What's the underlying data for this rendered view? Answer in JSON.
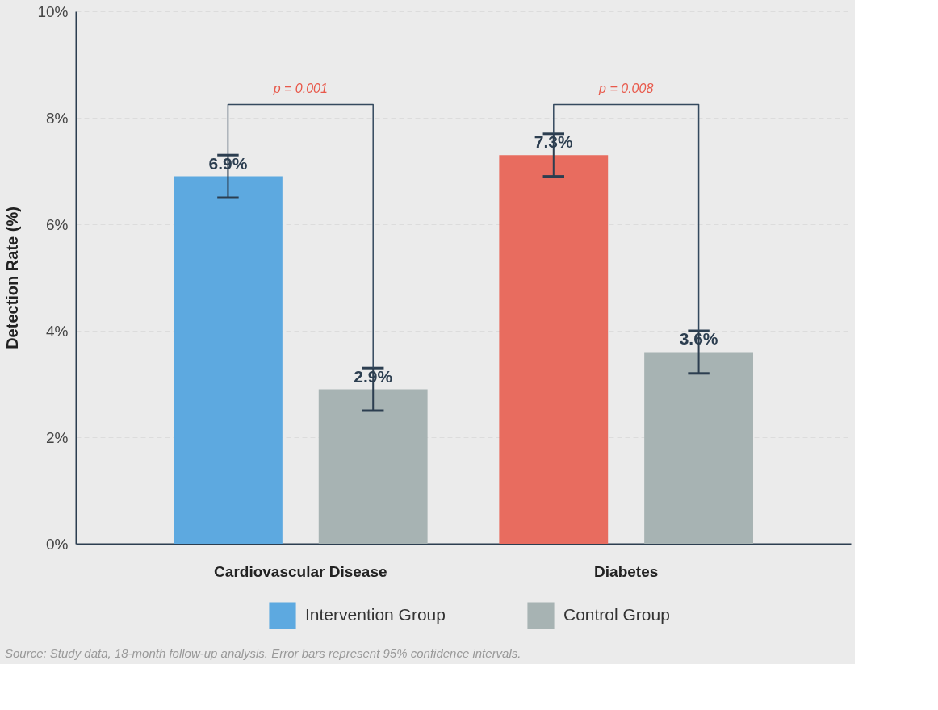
{
  "chart_data": {
    "type": "bar",
    "ylabel": "Detection Rate (%)",
    "categories": [
      "Cardiovascular Disease",
      "Diabetes"
    ],
    "series": [
      {
        "name": "Intervention Group",
        "color": "#5da9e0",
        "colors": [
          "#5da9e0",
          "#e86c5f"
        ],
        "values": [
          6.9,
          7.3
        ],
        "errors": [
          0.4,
          0.4
        ],
        "value_labels": [
          "6.9%",
          "7.3%"
        ]
      },
      {
        "name": "Control Group",
        "color": "#a7b3b3",
        "colors": [
          "#a7b3b3",
          "#a7b3b3"
        ],
        "values": [
          2.9,
          3.6
        ],
        "errors": [
          0.4,
          0.4
        ],
        "value_labels": [
          "2.9%",
          "3.6%"
        ]
      }
    ],
    "ylim": [
      0,
      10
    ],
    "yticks": [
      {
        "value": 0,
        "label": "0%"
      },
      {
        "value": 2,
        "label": "2%"
      },
      {
        "value": 4,
        "label": "4%"
      },
      {
        "value": 6,
        "label": "6%"
      },
      {
        "value": 8,
        "label": "8%"
      },
      {
        "value": 10,
        "label": "10%"
      }
    ],
    "grid": "y",
    "legend": "bottom",
    "annotations": [
      "p = 0.001",
      "p = 0.008",
      "Source: Study data, 18-month follow-up analysis. Error bars represent 95% confidence intervals."
    ]
  }
}
